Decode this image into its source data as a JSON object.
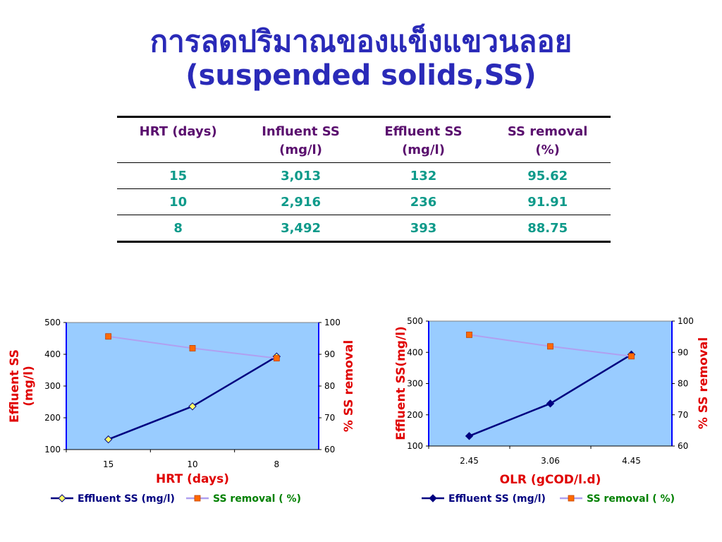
{
  "title_line1": "การลดปริมาณของแข็งแขวนลอย",
  "title_line2": "(suspended solids,SS)",
  "table": {
    "headers": [
      [
        "HRT (days)"
      ],
      [
        "Influent SS",
        "(mg/l)"
      ],
      [
        "Effluent SS",
        "(mg/l)"
      ],
      [
        "SS removal",
        "(%)"
      ]
    ],
    "rows": [
      [
        "15",
        "3,013",
        "132",
        "95.62"
      ],
      [
        "10",
        "2,916",
        "236",
        "91.91"
      ],
      [
        "8",
        "3,492",
        "393",
        "88.75"
      ]
    ]
  },
  "chart_data": [
    {
      "type": "line",
      "categories": [
        "15",
        "10",
        "8"
      ],
      "xlabel": "HRT (days)",
      "ylabel_lines": [
        "Effluent SS",
        "(mg/l)"
      ],
      "y2label": "% SS removal",
      "ylim": [
        100,
        500
      ],
      "y2lim": [
        60,
        100
      ],
      "yticks": [
        100,
        200,
        300,
        400,
        500
      ],
      "y2ticks": [
        60,
        70,
        80,
        90,
        100
      ],
      "grid": false,
      "legend": "bottom",
      "series": [
        {
          "name": "Effluent SS (mg/l)",
          "axis": "left",
          "values": [
            132,
            236,
            393
          ],
          "color": "#000080",
          "marker": "diamond",
          "marker_fill": "#ffff66"
        },
        {
          "name": "SS removal ( %)",
          "axis": "right",
          "values": [
            95.62,
            91.91,
            88.75
          ],
          "color": "#b0a0f0",
          "marker": "square",
          "marker_fill": "#ff6a00"
        }
      ]
    },
    {
      "type": "line",
      "categories": [
        "2.45",
        "3.06",
        "4.45"
      ],
      "xlabel": "OLR (gCOD/l.d)",
      "ylabel_lines": [
        "Effluent SS(mg/l)"
      ],
      "y2label": "% SS removal",
      "ylim": [
        100,
        500
      ],
      "y2lim": [
        60,
        100
      ],
      "yticks": [
        100,
        200,
        300,
        400,
        500
      ],
      "y2ticks": [
        60,
        70,
        80,
        90,
        100
      ],
      "grid": false,
      "legend": "bottom",
      "series": [
        {
          "name": "Effluent SS (mg/l)",
          "axis": "left",
          "values": [
            132,
            236,
            393
          ],
          "color": "#000080",
          "marker": "diamond",
          "marker_fill": "#000080"
        },
        {
          "name": "SS removal ( %)",
          "axis": "right",
          "values": [
            95.62,
            91.91,
            88.75
          ],
          "color": "#b0a0f0",
          "marker": "square",
          "marker_fill": "#ff6a00"
        }
      ]
    }
  ],
  "colors": {
    "plot_bg": "#99ccff",
    "axis_line": "#0000ff",
    "legend_left_text": "#000080",
    "legend_right_text": "#008000"
  }
}
